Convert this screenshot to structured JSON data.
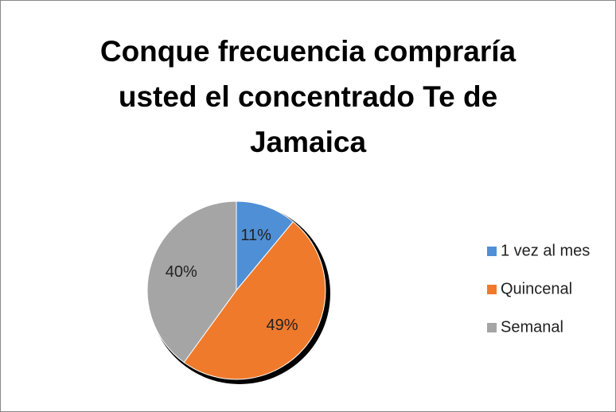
{
  "chart_data": {
    "type": "pie",
    "title": "Conque frecuencia compraría usted el concentrado Te de Jamaica",
    "categories": [
      "1 vez al mes",
      "Quincenal",
      "Semanal"
    ],
    "values": [
      11,
      49,
      40
    ],
    "value_labels": [
      "11%",
      "49%",
      "40%"
    ],
    "colors": [
      "#4f8fd6",
      "#ef7a2c",
      "#a5a5a5"
    ],
    "legend": "right"
  }
}
